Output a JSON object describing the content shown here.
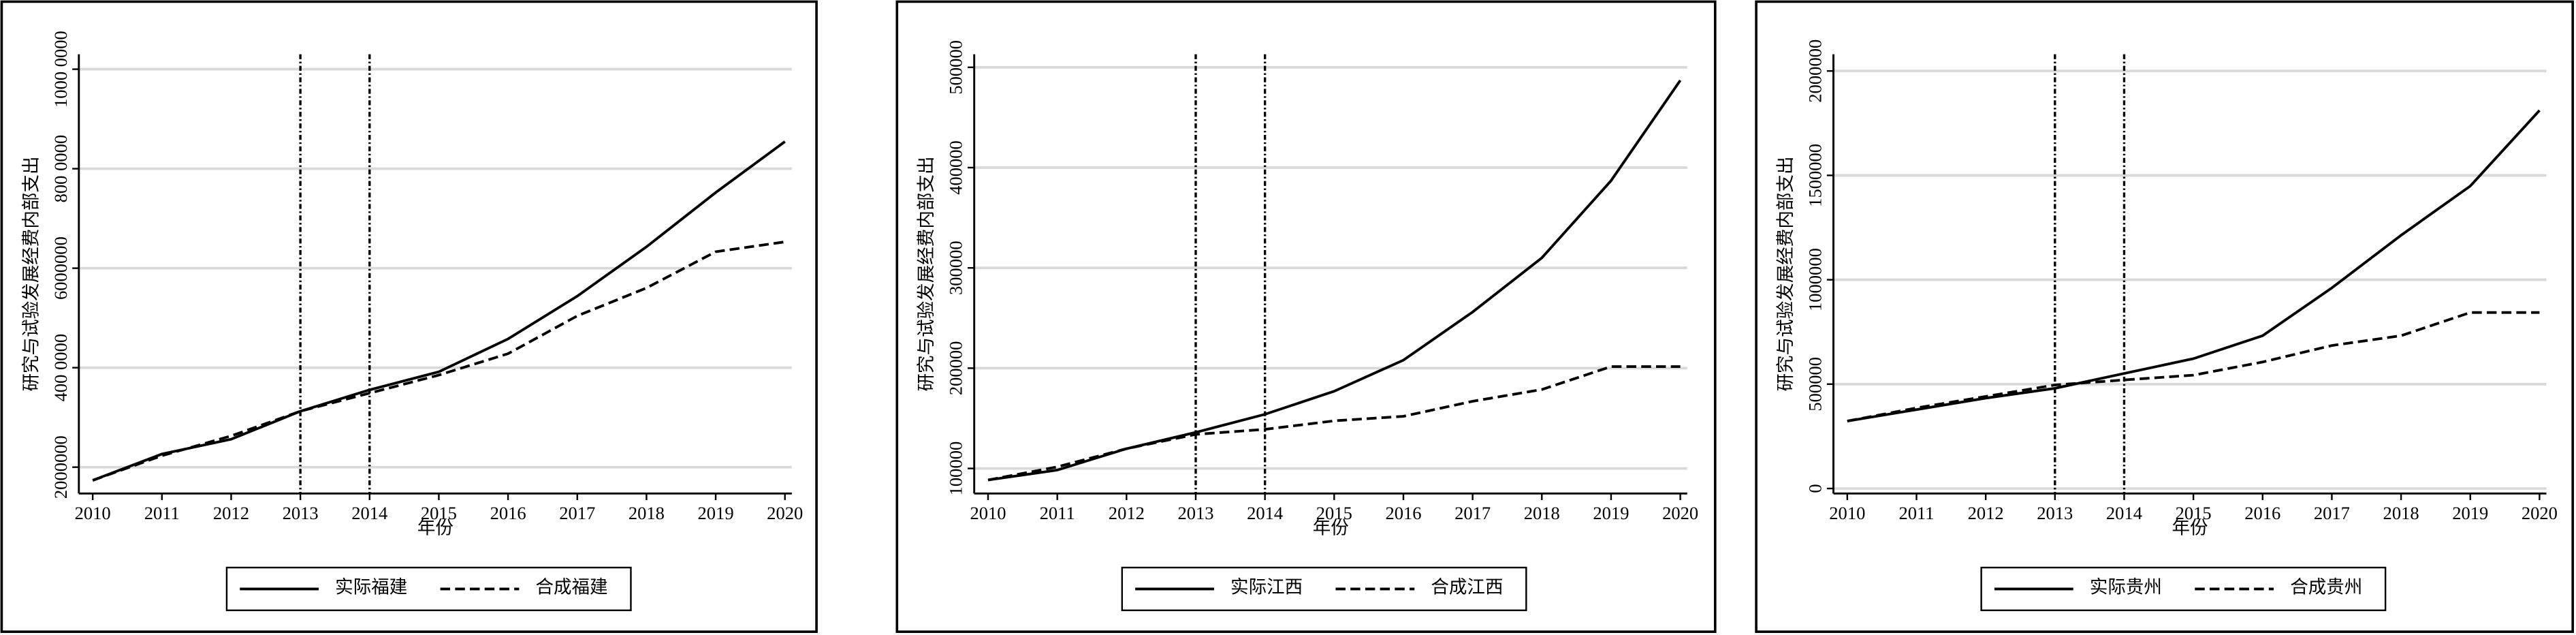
{
  "chart_data": [
    {
      "type": "line",
      "x_label": "年份",
      "y_label": "研究与试验发展经费内部支出",
      "x": [
        2010,
        2011,
        2012,
        2013,
        2014,
        2015,
        2016,
        2017,
        2018,
        2019,
        2020
      ],
      "xlim": [
        2009.8,
        2020.1
      ],
      "xticks": [
        2010,
        2011,
        2012,
        2013,
        2014,
        2015,
        2016,
        2017,
        2018,
        2019,
        2020
      ],
      "ylim": [
        1470000,
        10300000
      ],
      "yticks": [
        {
          "value": 2000000,
          "label": "2000000"
        },
        {
          "value": 4000000,
          "label": "400 0000"
        },
        {
          "value": 6000000,
          "label": "6000000"
        },
        {
          "value": 8000000,
          "label": "800 0000"
        },
        {
          "value": 10000000,
          "label": "1000 0000"
        }
      ],
      "grid": true,
      "vlines": [
        2013,
        2014
      ],
      "legend": "bottom",
      "series": [
        {
          "name": "实际福建",
          "color": "#000000",
          "style": "solid",
          "values": [
            1735000,
            2264000,
            2562000,
            3124000,
            3554000,
            3917000,
            4578000,
            5438000,
            6430000,
            7521000,
            8545000
          ]
        },
        {
          "name": "合成福建",
          "color": "#000000",
          "style": "dashed",
          "values": [
            1735000,
            2231000,
            2628000,
            3124000,
            3488000,
            3851000,
            4281000,
            5041000,
            5603000,
            6331000,
            6529000
          ]
        }
      ]
    },
    {
      "type": "line",
      "x_label": "年份",
      "y_label": "研究与试验发展经费内部支出",
      "x": [
        2010,
        2011,
        2012,
        2013,
        2014,
        2015,
        2016,
        2017,
        2018,
        2019,
        2020
      ],
      "xlim": [
        2009.8,
        2020.1
      ],
      "xticks": [
        2010,
        2011,
        2012,
        2013,
        2014,
        2015,
        2016,
        2017,
        2018,
        2019,
        2020
      ],
      "ylim": [
        75000,
        513000
      ],
      "yticks": [
        100000,
        200000,
        300000,
        400000,
        500000
      ],
      "grid": true,
      "vlines": [
        2013,
        2014
      ],
      "legend": "bottom",
      "series": [
        {
          "name": "实际江西",
          "color": "#000000",
          "style": "solid",
          "values": [
            88500,
            98400,
            119700,
            136000,
            154000,
            177000,
            208000,
            256000,
            310000,
            387000,
            487000
          ]
        },
        {
          "name": "合成江西",
          "color": "#000000",
          "style": "dashed",
          "values": [
            88500,
            101600,
            119700,
            134000,
            139000,
            147500,
            152000,
            167000,
            178700,
            201600,
            201600
          ]
        }
      ]
    },
    {
      "type": "line",
      "x_label": "年份",
      "y_label": "研究与试验发展经费内部支出",
      "x": [
        2010,
        2011,
        2012,
        2013,
        2014,
        2015,
        2016,
        2017,
        2018,
        2019,
        2020
      ],
      "xlim": [
        2009.8,
        2020.1
      ],
      "xticks": [
        2010,
        2011,
        2012,
        2013,
        2014,
        2015,
        2016,
        2017,
        2018,
        2019,
        2020
      ],
      "ylim": [
        -24000,
        2080000
      ],
      "yticks": [
        0,
        500000,
        1000000,
        1500000,
        2000000
      ],
      "grid": true,
      "vlines": [
        2013,
        2014
      ],
      "legend": "bottom",
      "series": [
        {
          "name": "实际贵州",
          "color": "#000000",
          "style": "solid",
          "values": [
            323000,
            378000,
            433000,
            480000,
            551000,
            622000,
            732000,
            961000,
            1213000,
            1449000,
            1811000
          ]
        },
        {
          "name": "合成贵州",
          "color": "#000000",
          "style": "dashed",
          "values": [
            323000,
            386000,
            441000,
            496000,
            520000,
            543000,
            606000,
            685000,
            732000,
            843000,
            843000
          ]
        }
      ]
    }
  ]
}
